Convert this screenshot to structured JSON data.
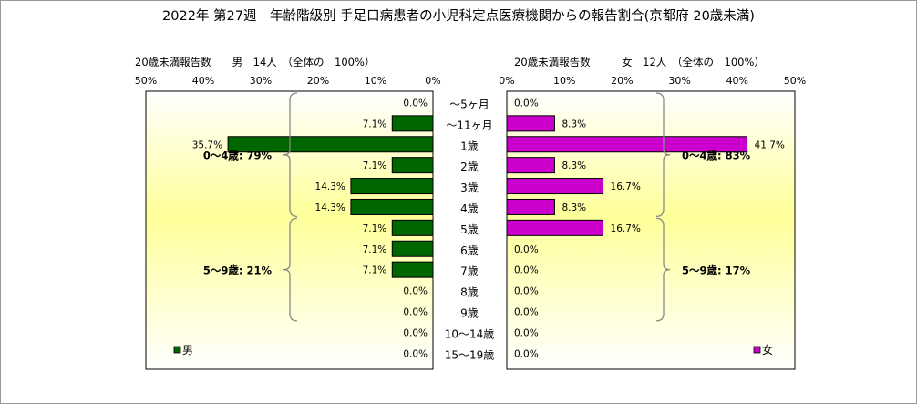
{
  "chart_data": {
    "type": "bar",
    "title": "2022年 第27週　年齢階級別 手足口病患者の小児科定点医療機関からの報告割合(京都府 20歳未満)",
    "categories": [
      "～5ヶ月",
      "～11ヶ月",
      "1歳",
      "2歳",
      "3歳",
      "4歳",
      "5歳",
      "6歳",
      "7歳",
      "8歳",
      "9歳",
      "10～14歳",
      "15～19歳"
    ],
    "xlim": [
      0,
      50
    ],
    "ticks": [
      "0%",
      "10%",
      "20%",
      "30%",
      "40%",
      "50%"
    ],
    "grid": false,
    "series": [
      {
        "name": "男",
        "color": "#006600",
        "header": "20歳未満報告数　　男　14人　（全体の　100%）",
        "values": [
          0.0,
          7.1,
          35.7,
          7.1,
          14.3,
          14.3,
          7.1,
          7.1,
          7.1,
          0.0,
          0.0,
          0.0,
          0.0
        ],
        "value_labels": [
          "0.0%",
          "7.1%",
          "35.7%",
          "7.1%",
          "14.3%",
          "14.3%",
          "7.1%",
          "7.1%",
          "7.1%",
          "0.0%",
          "0.0%",
          "0.0%",
          "0.0%"
        ],
        "groups": [
          {
            "label": "0～4歳: 79%",
            "from": 0,
            "to": 5
          },
          {
            "label": "5～9歳: 21%",
            "from": 6,
            "to": 10
          }
        ],
        "legend_position": "bottom-left"
      },
      {
        "name": "女",
        "color": "#cc00cc",
        "header": "20歳未満報告数　　　女　12人　（全体の　100%）",
        "values": [
          0.0,
          8.3,
          41.7,
          8.3,
          16.7,
          8.3,
          16.7,
          0.0,
          0.0,
          0.0,
          0.0,
          0.0,
          0.0
        ],
        "value_labels": [
          "0.0%",
          "8.3%",
          "41.7%",
          "8.3%",
          "16.7%",
          "8.3%",
          "16.7%",
          "0.0%",
          "0.0%",
          "0.0%",
          "0.0%",
          "0.0%",
          "0.0%"
        ],
        "groups": [
          {
            "label": "0～4歳: 83%",
            "from": 0,
            "to": 5
          },
          {
            "label": "5～9歳: 17%",
            "from": 6,
            "to": 10
          }
        ],
        "legend_position": "bottom-right"
      }
    ],
    "colors": {
      "panel_background": "#ffffd4",
      "panel_background_center": "#ffff99",
      "bracket": "#888888"
    }
  }
}
